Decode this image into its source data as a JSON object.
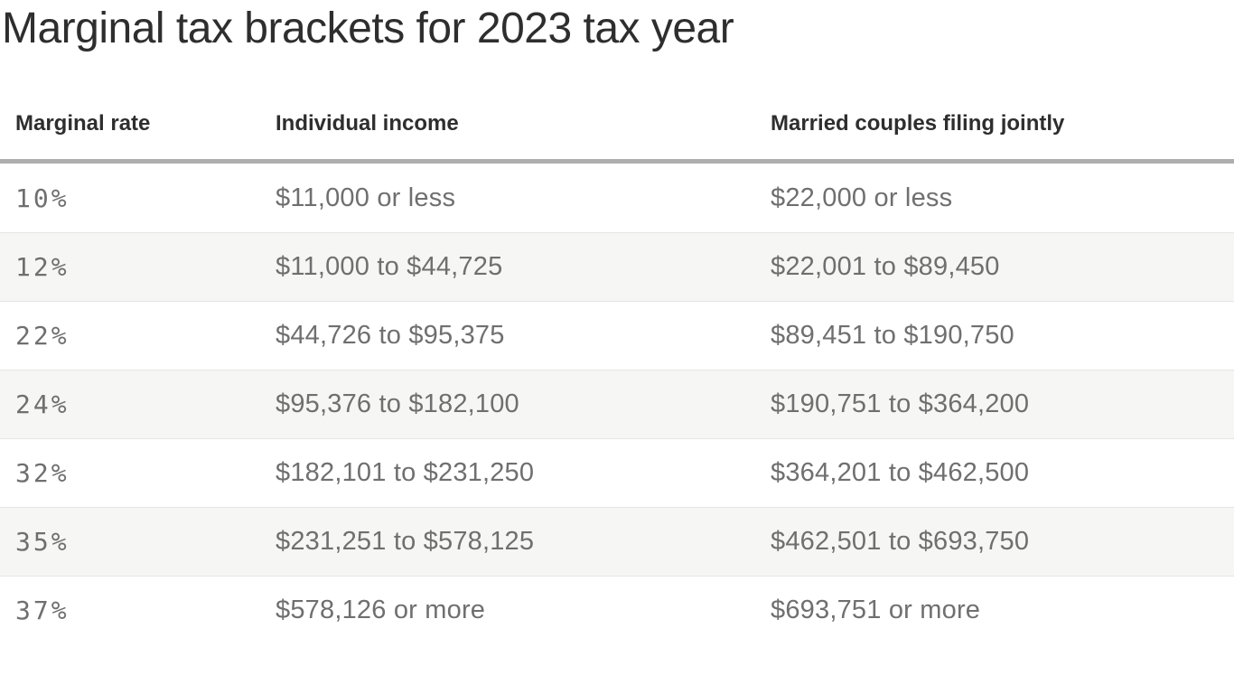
{
  "title": "Marginal tax brackets for 2023 tax year",
  "colors": {
    "heading-text": "#2e2e2e",
    "body-text": "#6f6f6f",
    "stripe": "#f6f6f5",
    "row-border": "#e5e5e3",
    "divider-strong": "#aeaeae"
  },
  "chart_data": {
    "type": "table",
    "title": "Marginal tax brackets for 2023 tax year",
    "columns": [
      "Marginal rate",
      "Individual income",
      "Married couples filing jointly"
    ],
    "rows": [
      [
        "10%",
        "$11,000 or less",
        "$22,000 or less"
      ],
      [
        "12%",
        "$11,000 to $44,725",
        "$22,001 to $89,450"
      ],
      [
        "22%",
        "$44,726 to $95,375",
        "$89,451 to $190,750"
      ],
      [
        "24%",
        "$95,376 to $182,100",
        "$190,751 to $364,200"
      ],
      [
        "32%",
        "$182,101 to $231,250",
        "$364,201 to $462,500"
      ],
      [
        "35%",
        "$231,251 to $578,125",
        "$462,501 to $693,750"
      ],
      [
        "37%",
        "$578,126 or more",
        "$693,751 or more"
      ]
    ],
    "layout": {
      "striped_rows": [
        2,
        4,
        6
      ],
      "header_divider": true,
      "grid": "off",
      "legend": "none"
    }
  }
}
